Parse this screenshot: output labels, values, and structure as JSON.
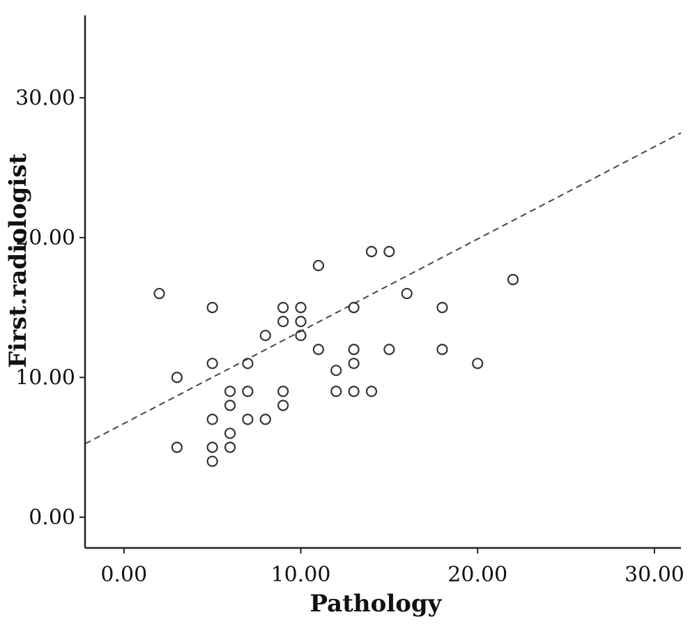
{
  "chart_data": {
    "type": "scatter",
    "xlabel": "Pathology",
    "ylabel": "First.radiologist",
    "xlim": [
      -2.2,
      31.5
    ],
    "ylim": [
      -2.2,
      35.9
    ],
    "xticks": [
      0,
      10,
      20,
      30
    ],
    "yticks": [
      0,
      10,
      20,
      30
    ],
    "xtick_labels": [
      "0.00",
      "10.00",
      "20.00",
      "30.00"
    ],
    "ytick_labels": [
      "0.00",
      "10.00",
      "20.00",
      "30.00"
    ],
    "grid": false,
    "series": [
      {
        "points": [
          [
            2,
            16
          ],
          [
            3,
            10
          ],
          [
            3,
            5
          ],
          [
            5,
            15
          ],
          [
            5,
            11
          ],
          [
            5,
            7
          ],
          [
            5,
            5
          ],
          [
            5,
            4
          ],
          [
            6,
            9
          ],
          [
            6,
            8
          ],
          [
            6,
            6
          ],
          [
            6,
            5
          ],
          [
            7,
            11
          ],
          [
            7,
            9
          ],
          [
            7,
            7
          ],
          [
            8,
            13
          ],
          [
            8,
            7
          ],
          [
            9,
            15
          ],
          [
            9,
            14
          ],
          [
            9,
            9
          ],
          [
            9,
            8
          ],
          [
            10,
            15
          ],
          [
            10,
            14
          ],
          [
            10,
            13
          ],
          [
            11,
            18
          ],
          [
            11,
            12
          ],
          [
            12,
            10.5
          ],
          [
            12,
            9
          ],
          [
            13,
            15
          ],
          [
            13,
            12
          ],
          [
            13,
            11
          ],
          [
            13,
            9
          ],
          [
            14,
            19
          ],
          [
            14,
            9
          ],
          [
            15,
            19
          ],
          [
            15,
            12
          ],
          [
            16,
            16
          ],
          [
            18,
            15
          ],
          [
            18,
            12
          ],
          [
            20,
            11
          ],
          [
            22,
            17
          ]
        ]
      }
    ],
    "fit_line": {
      "slope": 0.66,
      "intercept": 6.7,
      "style": "dashed"
    }
  }
}
